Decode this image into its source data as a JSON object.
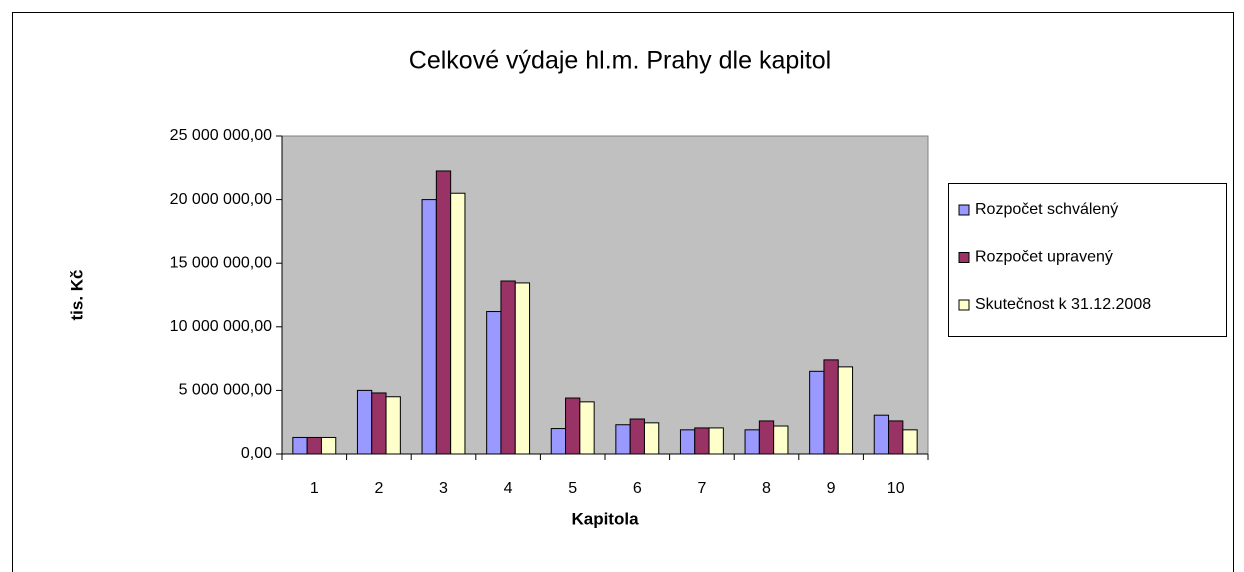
{
  "chart_data": {
    "type": "bar",
    "title": "Celkové výdaje hl.m. Prahy dle kapitol",
    "x_label": "Kapitola",
    "y_label": "tis. Kč",
    "categories": [
      "1",
      "2",
      "3",
      "4",
      "5",
      "6",
      "7",
      "8",
      "9",
      "10"
    ],
    "series": [
      {
        "name": "Rozpočet schválený",
        "color": "#9999ff",
        "values": [
          1300000,
          5000000,
          20000000,
          11200000,
          2000000,
          2300000,
          1900000,
          1900000,
          6500000,
          3050000
        ]
      },
      {
        "name": "Rozpočet upravený",
        "color": "#993366",
        "values": [
          1300000,
          4800000,
          22250000,
          13600000,
          4400000,
          2750000,
          2050000,
          2600000,
          7400000,
          2600000
        ]
      },
      {
        "name": "Skutečnost k 31.12.2008",
        "color": "#ffffcc",
        "values": [
          1300000,
          4500000,
          20500000,
          13450000,
          4100000,
          2450000,
          2050000,
          2200000,
          6850000,
          1900000
        ]
      }
    ],
    "ylim": [
      0,
      25000000
    ],
    "yticks": [
      {
        "value": 0,
        "label": "0,00"
      },
      {
        "value": 5000000,
        "label": "5 000 000,00"
      },
      {
        "value": 10000000,
        "label": "10 000 000,00"
      },
      {
        "value": 15000000,
        "label": "15 000 000,00"
      },
      {
        "value": 20000000,
        "label": "20 000 000,00"
      },
      {
        "value": 25000000,
        "label": "25 000 000,00"
      }
    ],
    "grid": false,
    "legend": "right",
    "plot_background": "#c0c0c0"
  }
}
